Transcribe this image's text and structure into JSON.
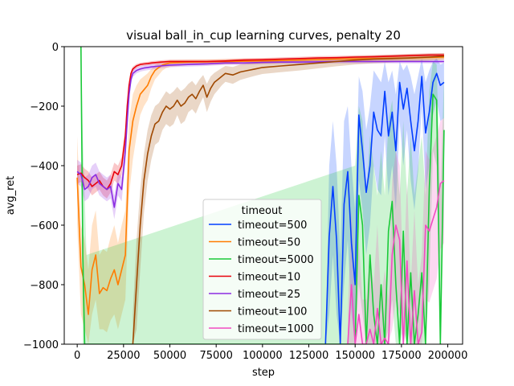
{
  "chart_data": {
    "type": "line",
    "title": "visual ball_in_cup learning curves, penalty 20",
    "xlabel": "step",
    "ylabel": "avg_ret",
    "xlim": [
      -7000,
      208000
    ],
    "ylim": [
      -1000,
      0
    ],
    "x_ticks": [
      0,
      25000,
      50000,
      75000,
      100000,
      125000,
      150000,
      175000,
      200000
    ],
    "x_tick_labels": [
      "0",
      "25000",
      "50000",
      "75000",
      "100000",
      "125000",
      "150000",
      "175000",
      "200000"
    ],
    "y_ticks": [
      -1000,
      -800,
      -600,
      -400,
      -200,
      0
    ],
    "y_tick_labels": [
      "−1000",
      "−800",
      "−600",
      "−400",
      "−200",
      "0"
    ],
    "grid": false,
    "legend": {
      "title": "timeout",
      "placement": "lower-center",
      "entries": [
        "timeout=500",
        "timeout=50",
        "timeout=5000",
        "timeout=10",
        "timeout=25",
        "timeout=100",
        "timeout=1000"
      ]
    },
    "series": [
      {
        "name": "timeout=500",
        "color": "#023eff",
        "x": [
          134000,
          136000,
          138000,
          140000,
          142000,
          144000,
          146000,
          148000,
          150000,
          152000,
          154000,
          156000,
          158000,
          160000,
          162000,
          164000,
          166000,
          168000,
          170000,
          172000,
          174000,
          176000,
          178000,
          180000,
          182000,
          184000,
          186000,
          188000,
          190000,
          192000,
          194000,
          196000,
          198000
        ],
        "y": [
          -1000,
          -640,
          -470,
          -650,
          -1000,
          -530,
          -420,
          -660,
          -800,
          -230,
          -350,
          -490,
          -400,
          -220,
          -280,
          -300,
          -150,
          -300,
          -220,
          -350,
          -120,
          -210,
          -140,
          -250,
          -350,
          -250,
          -100,
          -290,
          -220,
          -120,
          -90,
          -130,
          -120
        ],
        "band_upper": [
          -1000,
          -400,
          -250,
          -400,
          -700,
          -250,
          -200,
          -400,
          -550,
          -100,
          -150,
          -280,
          -200,
          -80,
          -100,
          -120,
          -50,
          -120,
          -80,
          -160,
          -50,
          -80,
          -60,
          -100,
          -160,
          -100,
          -40,
          -120,
          -80,
          -50,
          -40,
          -60,
          -55
        ],
        "band_lower": [
          -1000,
          -900,
          -700,
          -900,
          -1000,
          -800,
          -650,
          -900,
          -1000,
          -450,
          -550,
          -700,
          -600,
          -400,
          -480,
          -500,
          -300,
          -500,
          -400,
          -550,
          -250,
          -400,
          -280,
          -450,
          -550,
          -420,
          -200,
          -480,
          -400,
          -230,
          -180,
          -250,
          -240
        ]
      },
      {
        "name": "timeout=50",
        "color": "#ff7c00",
        "x": [
          0,
          2000,
          4000,
          6000,
          8000,
          10000,
          12000,
          14000,
          16000,
          18000,
          20000,
          22000,
          24000,
          26000,
          28000,
          30000,
          32000,
          34000,
          36000,
          38000,
          40000,
          42000,
          44000,
          46000,
          48000,
          50000,
          60000,
          80000,
          100000,
          120000,
          140000,
          160000,
          180000,
          198000
        ],
        "y": [
          -440,
          -740,
          -800,
          -900,
          -750,
          -700,
          -830,
          -810,
          -820,
          -780,
          -750,
          -800,
          -750,
          -700,
          -350,
          -250,
          -200,
          -160,
          -145,
          -130,
          -100,
          -80,
          -70,
          -62,
          -58,
          -55,
          -52,
          -50,
          -48,
          -45,
          -42,
          -40,
          -38,
          -35
        ],
        "band_upper": [
          -300,
          -600,
          -650,
          -750,
          -600,
          -550,
          -700,
          -680,
          -690,
          -640,
          -600,
          -660,
          -600,
          -550,
          -250,
          -160,
          -130,
          -110,
          -100,
          -90,
          -75,
          -62,
          -55,
          -50,
          -47,
          -45,
          -44,
          -42,
          -40,
          -38,
          -35,
          -33,
          -31,
          -28
        ],
        "band_lower": [
          -600,
          -900,
          -950,
          -1000,
          -900,
          -850,
          -950,
          -950,
          -960,
          -920,
          -900,
          -950,
          -900,
          -850,
          -500,
          -380,
          -300,
          -230,
          -200,
          -180,
          -140,
          -110,
          -95,
          -80,
          -72,
          -68,
          -62,
          -60,
          -57,
          -54,
          -50,
          -48,
          -46,
          -43
        ]
      },
      {
        "name": "timeout=5000",
        "color": "#1ac938",
        "x": [
          2000,
          3000,
          4000,
          5000,
          150000,
          152000,
          154000,
          156000,
          158000,
          160000,
          162000,
          164000,
          166000,
          168000,
          170000,
          172000,
          174000,
          176000,
          178000,
          180000,
          182000,
          184000,
          186000,
          188000,
          190000,
          192000,
          194000,
          196000,
          198000
        ],
        "y": [
          0,
          -700,
          -1000,
          -1000,
          -1000,
          -500,
          -600,
          -1000,
          -700,
          -900,
          -1000,
          -800,
          -1000,
          -620,
          -520,
          -800,
          -1000,
          -620,
          -1000,
          -760,
          -1000,
          -900,
          -760,
          -1000,
          -480,
          -160,
          -180,
          -1000,
          -280
        ],
        "band_upper": [
          0,
          -300,
          -500,
          -700,
          -400,
          -200,
          -250,
          -500,
          -300,
          -400,
          -500,
          -350,
          -500,
          -250,
          -180,
          -350,
          -500,
          -250,
          -500,
          -300,
          -500,
          -400,
          -300,
          -500,
          -150,
          -50,
          -60,
          -500,
          -100
        ],
        "band_lower": [
          -100,
          -1000,
          -1000,
          -1000,
          -1000,
          -800,
          -900,
          -1000,
          -1000,
          -1000,
          -1000,
          -1000,
          -1000,
          -950,
          -850,
          -1000,
          -1000,
          -950,
          -1000,
          -1000,
          -1000,
          -1000,
          -1000,
          -1000,
          -800,
          -350,
          -400,
          -1000,
          -550
        ]
      },
      {
        "name": "timeout=10",
        "color": "#e8000b",
        "x": [
          0,
          2000,
          4000,
          6000,
          8000,
          10000,
          12000,
          14000,
          16000,
          18000,
          20000,
          22000,
          24000,
          26000,
          27000,
          28000,
          29000,
          30000,
          32000,
          34000,
          36000,
          38000,
          40000,
          45000,
          50000,
          60000,
          70000,
          80000,
          90000,
          100000,
          110000,
          120000,
          130000,
          140000,
          150000,
          160000,
          170000,
          180000,
          190000,
          198000
        ],
        "y": [
          -430,
          -425,
          -440,
          -450,
          -470,
          -460,
          -450,
          -470,
          -480,
          -460,
          -420,
          -430,
          -400,
          -300,
          -200,
          -130,
          -90,
          -75,
          -65,
          -60,
          -58,
          -57,
          -55,
          -52,
          -50,
          -50,
          -50,
          -48,
          -45,
          -44,
          -42,
          -40,
          -38,
          -37,
          -35,
          -34,
          -32,
          -30,
          -28,
          -28
        ],
        "band_upper": [
          -400,
          -395,
          -410,
          -420,
          -440,
          -430,
          -420,
          -440,
          -450,
          -430,
          -390,
          -400,
          -370,
          -270,
          -180,
          -115,
          -80,
          -67,
          -58,
          -54,
          -52,
          -51,
          -49,
          -46,
          -44,
          -44,
          -44,
          -42,
          -39,
          -38,
          -36,
          -34,
          -32,
          -31,
          -29,
          -28,
          -26,
          -24,
          -22,
          -22
        ],
        "band_lower": [
          -460,
          -455,
          -470,
          -480,
          -500,
          -490,
          -480,
          -500,
          -510,
          -490,
          -450,
          -460,
          -430,
          -330,
          -220,
          -145,
          -100,
          -83,
          -72,
          -66,
          -64,
          -63,
          -61,
          -58,
          -56,
          -56,
          -56,
          -54,
          -51,
          -50,
          -48,
          -46,
          -44,
          -43,
          -41,
          -40,
          -38,
          -36,
          -34,
          -34
        ]
      },
      {
        "name": "timeout=25",
        "color": "#8b2be2",
        "x": [
          0,
          2000,
          4000,
          6000,
          8000,
          10000,
          12000,
          14000,
          16000,
          18000,
          20000,
          22000,
          24000,
          26000,
          27000,
          28000,
          29000,
          30000,
          32000,
          34000,
          36000,
          38000,
          40000,
          45000,
          50000,
          60000,
          70000,
          80000,
          90000,
          100000,
          110000,
          120000,
          130000,
          140000,
          150000,
          160000,
          170000,
          180000,
          190000,
          198000
        ],
        "y": [
          -420,
          -430,
          -480,
          -470,
          -440,
          -430,
          -460,
          -470,
          -480,
          -470,
          -540,
          -460,
          -480,
          -350,
          -250,
          -160,
          -110,
          -90,
          -80,
          -75,
          -72,
          -70,
          -68,
          -65,
          -62,
          -60,
          -58,
          -55,
          -55,
          -53,
          -52,
          -52,
          -51,
          -50,
          -50,
          -50,
          -50,
          -50,
          -50,
          -50
        ],
        "band_upper": [
          -380,
          -390,
          -440,
          -430,
          -400,
          -390,
          -420,
          -430,
          -440,
          -430,
          -500,
          -420,
          -440,
          -310,
          -220,
          -135,
          -95,
          -78,
          -70,
          -66,
          -63,
          -61,
          -59,
          -57,
          -55,
          -53,
          -51,
          -49,
          -49,
          -47,
          -46,
          -46,
          -45,
          -44,
          -44,
          -44,
          -44,
          -44,
          -44,
          -44
        ],
        "band_lower": [
          -460,
          -470,
          -520,
          -510,
          -480,
          -470,
          -500,
          -510,
          -520,
          -510,
          -580,
          -500,
          -520,
          -390,
          -280,
          -185,
          -125,
          -102,
          -90,
          -84,
          -81,
          -79,
          -77,
          -73,
          -69,
          -67,
          -65,
          -61,
          -61,
          -59,
          -58,
          -58,
          -57,
          -56,
          -56,
          -56,
          -56,
          -56,
          -56,
          -56
        ]
      },
      {
        "name": "timeout=100",
        "color": "#9f4800",
        "x": [
          30000,
          32000,
          34000,
          36000,
          38000,
          40000,
          42000,
          44000,
          46000,
          48000,
          50000,
          52000,
          54000,
          56000,
          58000,
          60000,
          62000,
          64000,
          66000,
          68000,
          70000,
          72000,
          74000,
          76000,
          78000,
          80000,
          84000,
          88000,
          92000,
          96000,
          100000,
          110000,
          120000,
          130000,
          140000,
          150000,
          160000,
          170000,
          180000,
          190000,
          198000
        ],
        "y": [
          -1000,
          -800,
          -600,
          -450,
          -360,
          -300,
          -260,
          -250,
          -220,
          -200,
          -210,
          -200,
          -180,
          -200,
          -190,
          -170,
          -160,
          -175,
          -150,
          -130,
          -170,
          -140,
          -120,
          -110,
          -100,
          -90,
          -95,
          -85,
          -80,
          -75,
          -70,
          -65,
          -60,
          -55,
          -50,
          -45,
          -42,
          -40,
          -38,
          -35,
          -32
        ],
        "band_upper": [
          -900,
          -650,
          -480,
          -360,
          -280,
          -230,
          -200,
          -190,
          -170,
          -150,
          -160,
          -150,
          -135,
          -150,
          -140,
          -125,
          -115,
          -130,
          -110,
          -95,
          -125,
          -100,
          -88,
          -80,
          -72,
          -65,
          -68,
          -60,
          -57,
          -53,
          -50,
          -46,
          -43,
          -40,
          -36,
          -32,
          -30,
          -28,
          -26,
          -24,
          -22
        ],
        "band_lower": [
          -1000,
          -950,
          -750,
          -560,
          -450,
          -380,
          -330,
          -320,
          -280,
          -260,
          -270,
          -260,
          -230,
          -260,
          -250,
          -220,
          -210,
          -225,
          -195,
          -170,
          -220,
          -185,
          -160,
          -145,
          -130,
          -118,
          -125,
          -112,
          -105,
          -98,
          -92,
          -86,
          -80,
          -73,
          -66,
          -60,
          -56,
          -53,
          -50,
          -47,
          -44
        ]
      },
      {
        "name": "timeout=1000",
        "color": "#f14cc1",
        "x": [
          146000,
          148000,
          150000,
          152000,
          154000,
          156000,
          158000,
          160000,
          162000,
          164000,
          166000,
          168000,
          170000,
          172000,
          174000,
          176000,
          178000,
          180000,
          182000,
          184000,
          186000,
          188000,
          190000,
          192000,
          194000,
          196000,
          198000
        ],
        "y": [
          -1000,
          -800,
          -1000,
          -900,
          -1000,
          -1000,
          -950,
          -1000,
          -880,
          -1000,
          -980,
          -1000,
          -700,
          -600,
          -650,
          -1000,
          -720,
          -1000,
          -820,
          -1000,
          -960,
          -600,
          -620,
          -580,
          -540,
          -460,
          -450
        ],
        "band_upper": [
          -900,
          -550,
          -800,
          -650,
          -850,
          -850,
          -700,
          -800,
          -600,
          -850,
          -750,
          -850,
          -450,
          -350,
          -400,
          -800,
          -450,
          -800,
          -550,
          -800,
          -700,
          -350,
          -380,
          -340,
          -300,
          -250,
          -240
        ],
        "band_lower": [
          -1000,
          -1000,
          -1000,
          -1000,
          -1000,
          -1000,
          -1000,
          -1000,
          -1000,
          -1000,
          -1000,
          -1000,
          -950,
          -850,
          -900,
          -1000,
          -950,
          -1000,
          -1000,
          -1000,
          -1000,
          -850,
          -860,
          -820,
          -780,
          -680,
          -660
        ]
      }
    ]
  }
}
